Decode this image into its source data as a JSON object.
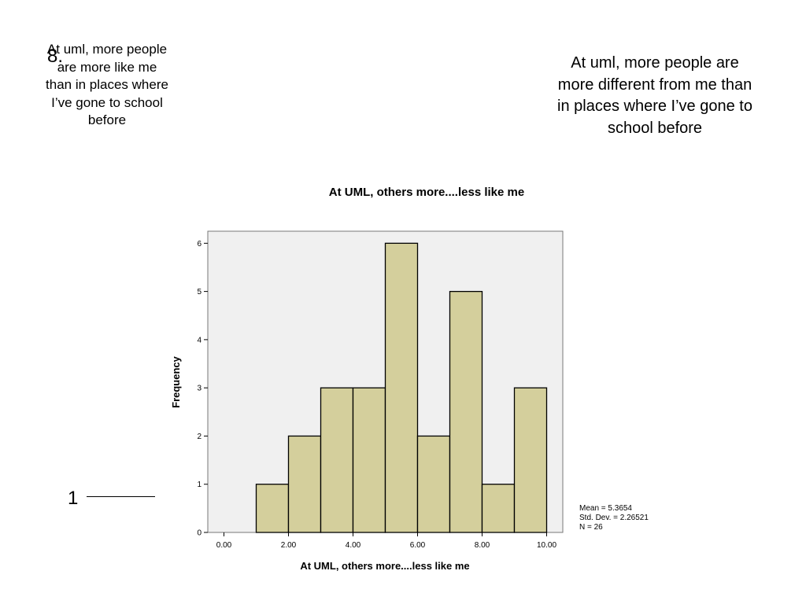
{
  "question": {
    "number": "8.",
    "left_label": "At uml, more people are more like me than in places where I’ve gone to school before",
    "right_label": "At uml, more people are more different from me than in places where I’ve gone to school before",
    "scale_start": "1"
  },
  "stats": {
    "mean": "Mean = 5.3654",
    "std": "Std. Dev. = 2.26521",
    "n": "N = 26"
  },
  "chart_data": {
    "type": "bar",
    "subtype": "histogram",
    "title": "At UML, others more....less like me",
    "xlabel": "At UML, others more....less like me",
    "ylabel": "Frequency",
    "xlim": [
      -0.5,
      10.5
    ],
    "ylim": [
      0,
      6.25
    ],
    "bin_width": 1,
    "bins": [
      {
        "x0": 1,
        "x1": 2,
        "value": 1
      },
      {
        "x0": 2,
        "x1": 3,
        "value": 2
      },
      {
        "x0": 3,
        "x1": 4,
        "value": 3
      },
      {
        "x0": 4,
        "x1": 5,
        "value": 3
      },
      {
        "x0": 5,
        "x1": 6,
        "value": 6
      },
      {
        "x0": 6,
        "x1": 7,
        "value": 2
      },
      {
        "x0": 7,
        "x1": 8,
        "value": 5
      },
      {
        "x0": 8,
        "x1": 9,
        "value": 1
      },
      {
        "x0": 9,
        "x1": 10,
        "value": 3
      }
    ],
    "x_ticks": [
      0,
      2,
      4,
      6,
      8,
      10
    ],
    "x_tick_labels": [
      "0.00",
      "2.00",
      "4.00",
      "6.00",
      "8.00",
      "10.00"
    ],
    "y_ticks": [
      0,
      1,
      2,
      3,
      4,
      5,
      6
    ],
    "y_tick_labels": [
      "0",
      "1",
      "2",
      "3",
      "4",
      "5",
      "6"
    ],
    "grid": false,
    "colors": {
      "plot_bg": "#f0f0f0",
      "bar_fill": "#d4cf9c",
      "bar_stroke": "#000000"
    }
  }
}
